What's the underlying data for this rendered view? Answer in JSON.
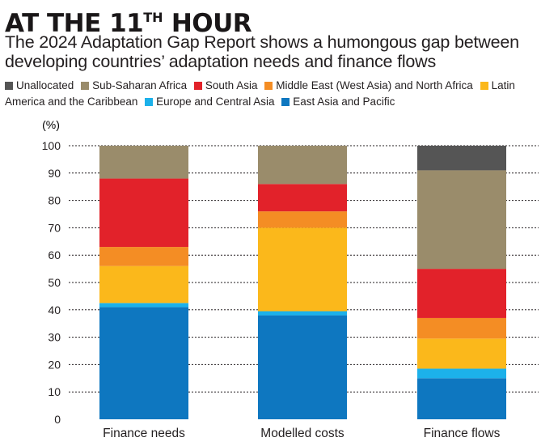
{
  "header": {
    "title_main": "AT THE 11",
    "title_sup": "TH",
    "title_end": " HOUR",
    "subtitle": "The 2024 Adaptation Gap Report shows a humongous gap between developing countries’ adaptation needs and finance flows"
  },
  "colors": {
    "Unallocated": "#555555",
    "Sub-Saharan Africa": "#9a8c6b",
    "South Asia": "#e2222a",
    "Middle East (West Asia) and North Africa": "#f48d24",
    "Latin America and the Caribbean": "#fbb81b",
    "Europe and Central Asia": "#1cb1ea",
    "East Asia and Pacific": "#0e77c0",
    "gridline": "#231f20",
    "axis_text": "#231f20"
  },
  "chart_data": {
    "type": "bar",
    "stacked": true,
    "ylabel": "(%)",
    "ylim": [
      0,
      100
    ],
    "yticks": [
      0,
      10,
      20,
      30,
      40,
      50,
      60,
      70,
      80,
      90,
      100
    ],
    "grid": true,
    "legend_position": "top",
    "categories": [
      "Finance needs",
      "Modelled costs",
      "Finance flows"
    ],
    "series": [
      {
        "name": "East Asia and Pacific",
        "values": [
          41,
          38,
          15
        ]
      },
      {
        "name": "Europe and Central Asia",
        "values": [
          1.5,
          1.5,
          3.5
        ]
      },
      {
        "name": "Latin America and the Caribbean",
        "values": [
          13.5,
          30.5,
          11
        ]
      },
      {
        "name": "Middle East (West Asia) and North Africa",
        "values": [
          7,
          6,
          7.5
        ]
      },
      {
        "name": "South Asia",
        "values": [
          25,
          10,
          18
        ]
      },
      {
        "name": "Sub-Saharan Africa",
        "values": [
          12,
          14,
          36
        ]
      },
      {
        "name": "Unallocated",
        "values": [
          0,
          0,
          9
        ]
      }
    ],
    "legend_order": [
      "Unallocated",
      "Sub-Saharan Africa",
      "South Asia",
      "Middle East (West Asia) and North Africa",
      "Latin America and the Caribbean",
      "Europe and Central Asia",
      "East Asia and Pacific"
    ]
  }
}
